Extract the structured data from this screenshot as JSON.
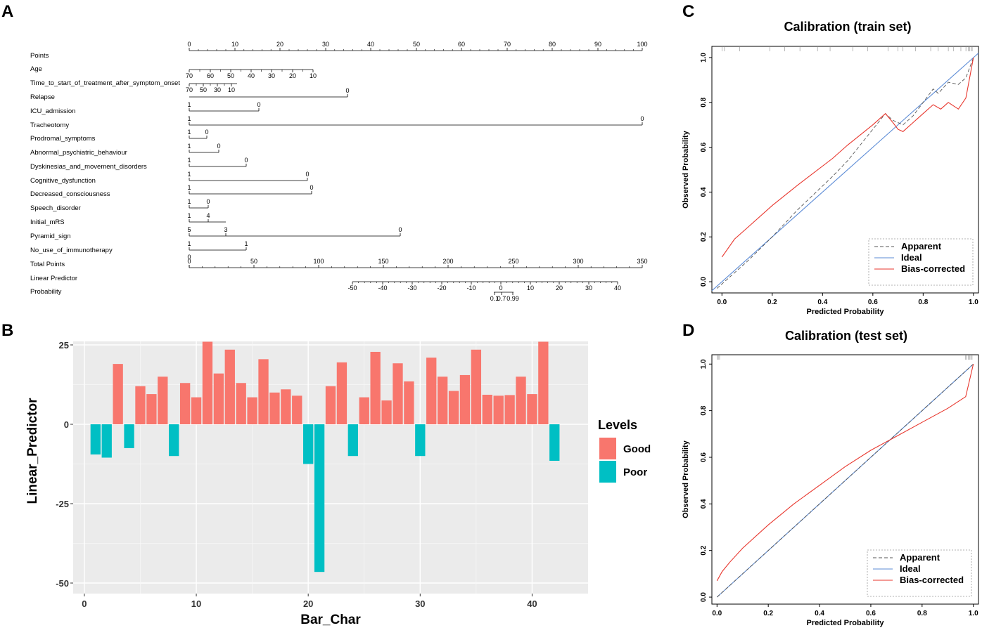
{
  "panel_letters": {
    "a": "A",
    "b": "B",
    "c": "C",
    "d": "D"
  },
  "chart_data": [
    {
      "panel": "A",
      "type": "table",
      "kind": "nomogram",
      "rows": [
        {
          "label": "Points",
          "ticks": [
            "0",
            "10",
            "20",
            "30",
            "40",
            "50",
            "60",
            "70",
            "80",
            "90",
            "100"
          ]
        },
        {
          "label": "Age",
          "ticks": [
            "70",
            "60",
            "50",
            "40",
            "30",
            "20",
            "10"
          ]
        },
        {
          "label": "Time_to_start_of_treatment_after_symptom_onset",
          "ticks": [
            "70",
            "50",
            "30",
            "10"
          ]
        },
        {
          "label": "Relapse",
          "ticks": [
            "0"
          ]
        },
        {
          "label": "ICU_admission",
          "ticks": [
            "1",
            "0"
          ]
        },
        {
          "label": "Tracheotomy",
          "ticks": [
            "1",
            "0"
          ]
        },
        {
          "label": "Prodromal_symptoms",
          "ticks": [
            "1",
            "0"
          ]
        },
        {
          "label": "Abnormal_psychiatric_behaviour",
          "ticks": [
            "1",
            "0"
          ]
        },
        {
          "label": "Dyskinesias_and_movement_disorders",
          "ticks": [
            "1",
            "0"
          ]
        },
        {
          "label": "Cognitive_dysfunction",
          "ticks": [
            "1",
            "0"
          ]
        },
        {
          "label": "Decreased_consciousness",
          "ticks": [
            "1",
            "0"
          ]
        },
        {
          "label": "Speech_disorder",
          "ticks": [
            "1",
            "0"
          ]
        },
        {
          "label": "Initial_mRS",
          "ticks": [
            "1",
            "4"
          ]
        },
        {
          "label": "Pyramid_sign",
          "ticks": [
            "5",
            "3",
            "0"
          ]
        },
        {
          "label": "No_use_of_immunotherapy",
          "ticks": [
            "1",
            "1"
          ]
        },
        {
          "label": "Total Points",
          "ticks": [
            "0",
            "0",
            "50",
            "100",
            "150",
            "200",
            "250",
            "300",
            "350"
          ]
        },
        {
          "label": "Linear Predictor",
          "ticks": [
            "-50",
            "-40",
            "-30",
            "-20",
            "-10",
            "0",
            "10",
            "20",
            "30",
            "40"
          ]
        },
        {
          "label": "Probability",
          "ticks": [
            "0.1",
            "0.7",
            "0.99"
          ]
        }
      ]
    },
    {
      "panel": "B",
      "type": "bar",
      "xlabel": "Bar_Char",
      "ylabel": "Linear_Predictor",
      "xlim": [
        -1,
        45
      ],
      "ylim": [
        -50,
        26
      ],
      "xticks": [
        "0",
        "10",
        "20",
        "30",
        "40"
      ],
      "yticks": [
        "25",
        "0",
        "-25",
        "-50"
      ],
      "legend_title": "Levels",
      "legend": [
        {
          "name": "Good",
          "color": "#F8766D"
        },
        {
          "name": "Poor",
          "color": "#00BFC4"
        }
      ],
      "x": [
        1,
        2,
        3,
        4,
        5,
        6,
        7,
        8,
        9,
        10,
        11,
        12,
        13,
        14,
        15,
        16,
        17,
        18,
        19,
        20,
        21,
        22,
        23,
        24,
        25,
        26,
        27,
        28,
        29,
        30,
        31,
        32,
        33,
        34,
        35,
        36,
        37,
        38,
        39,
        40,
        41,
        42
      ],
      "values": [
        -9.5,
        -10.5,
        19,
        -7.5,
        12,
        9.5,
        15,
        -10,
        13,
        8.5,
        26,
        16,
        23.5,
        13,
        8.5,
        20.5,
        10,
        11,
        9,
        -12.5,
        -46.5,
        12,
        19.5,
        -10,
        8.5,
        22.8,
        7.5,
        19.2,
        13.5,
        -10,
        21,
        15,
        10.5,
        15.5,
        23.5,
        9.3,
        9,
        9.2,
        15,
        9.5,
        26,
        -11.5
      ],
      "levels": [
        "Poor",
        "Poor",
        "Good",
        "Poor",
        "Good",
        "Good",
        "Good",
        "Poor",
        "Good",
        "Good",
        "Good",
        "Good",
        "Good",
        "Good",
        "Good",
        "Good",
        "Good",
        "Good",
        "Good",
        "Poor",
        "Poor",
        "Good",
        "Good",
        "Poor",
        "Good",
        "Good",
        "Good",
        "Good",
        "Good",
        "Poor",
        "Good",
        "Good",
        "Good",
        "Good",
        "Good",
        "Good",
        "Good",
        "Good",
        "Good",
        "Good",
        "Good",
        "Poor"
      ]
    },
    {
      "panel": "C",
      "type": "line",
      "title": "Calibration (train set)",
      "xlabel": "Predicted Probability",
      "ylabel": "Observed Probability",
      "xlim": [
        -0.04,
        1.02
      ],
      "ylim": [
        -0.05,
        1.05
      ],
      "xticks": [
        "0.0",
        "0.2",
        "0.4",
        "0.6",
        "0.8",
        "1.0"
      ],
      "yticks": [
        "0.0",
        "0.2",
        "0.4",
        "0.6",
        "0.8",
        "1.0"
      ],
      "legend": [
        "Apparent",
        "Ideal",
        "Bias-corrected"
      ],
      "series": [
        {
          "name": "Ideal",
          "color": "#5B8BD6",
          "x": [
            -0.04,
            1.02
          ],
          "y": [
            -0.04,
            1.02
          ]
        },
        {
          "name": "Apparent",
          "color": "#555555",
          "x": [
            -0.02,
            0.1,
            0.2,
            0.3,
            0.44,
            0.5,
            0.6,
            0.65,
            0.68,
            0.72,
            0.76,
            0.8,
            0.84,
            0.86,
            0.9,
            0.94,
            0.97,
            1.0
          ],
          "y": [
            -0.03,
            0.09,
            0.2,
            0.32,
            0.47,
            0.54,
            0.68,
            0.75,
            0.72,
            0.7,
            0.74,
            0.8,
            0.86,
            0.84,
            0.89,
            0.88,
            0.91,
            1.0
          ]
        },
        {
          "name": "Bias-corrected",
          "color": "#E8362D",
          "x": [
            0.0,
            0.05,
            0.1,
            0.2,
            0.3,
            0.44,
            0.5,
            0.6,
            0.65,
            0.68,
            0.7,
            0.72,
            0.76,
            0.8,
            0.84,
            0.87,
            0.9,
            0.94,
            0.97,
            1.0
          ],
          "y": [
            0.11,
            0.19,
            0.24,
            0.34,
            0.43,
            0.55,
            0.61,
            0.7,
            0.75,
            0.71,
            0.68,
            0.67,
            0.71,
            0.75,
            0.79,
            0.77,
            0.8,
            0.77,
            0.82,
            1.0
          ]
        }
      ]
    },
    {
      "panel": "D",
      "type": "line",
      "title": "Calibration (test set)",
      "xlabel": "Predicted Probability",
      "ylabel": "Observed Probability",
      "xlim": [
        -0.02,
        1.02
      ],
      "ylim": [
        -0.03,
        1.04
      ],
      "xticks": [
        "0.0",
        "0.2",
        "0.4",
        "0.6",
        "0.8",
        "1.0"
      ],
      "yticks": [
        "0.0",
        "0.2",
        "0.4",
        "0.6",
        "0.8",
        "1.0"
      ],
      "legend": [
        "Apparent",
        "Ideal",
        "Bias-corrected"
      ],
      "series": [
        {
          "name": "Ideal",
          "color": "#5B8BD6",
          "x": [
            0.0,
            1.0
          ],
          "y": [
            0.0,
            1.0
          ]
        },
        {
          "name": "Apparent",
          "color": "#555555",
          "x": [
            0.0,
            1.0
          ],
          "y": [
            0.0,
            1.0
          ]
        },
        {
          "name": "Bias-corrected",
          "color": "#E8362D",
          "x": [
            0.0,
            0.02,
            0.05,
            0.1,
            0.2,
            0.3,
            0.4,
            0.5,
            0.6,
            0.7,
            0.8,
            0.9,
            0.97,
            1.0
          ],
          "y": [
            0.07,
            0.11,
            0.15,
            0.21,
            0.31,
            0.4,
            0.48,
            0.56,
            0.63,
            0.69,
            0.75,
            0.81,
            0.86,
            1.0
          ]
        }
      ]
    }
  ]
}
